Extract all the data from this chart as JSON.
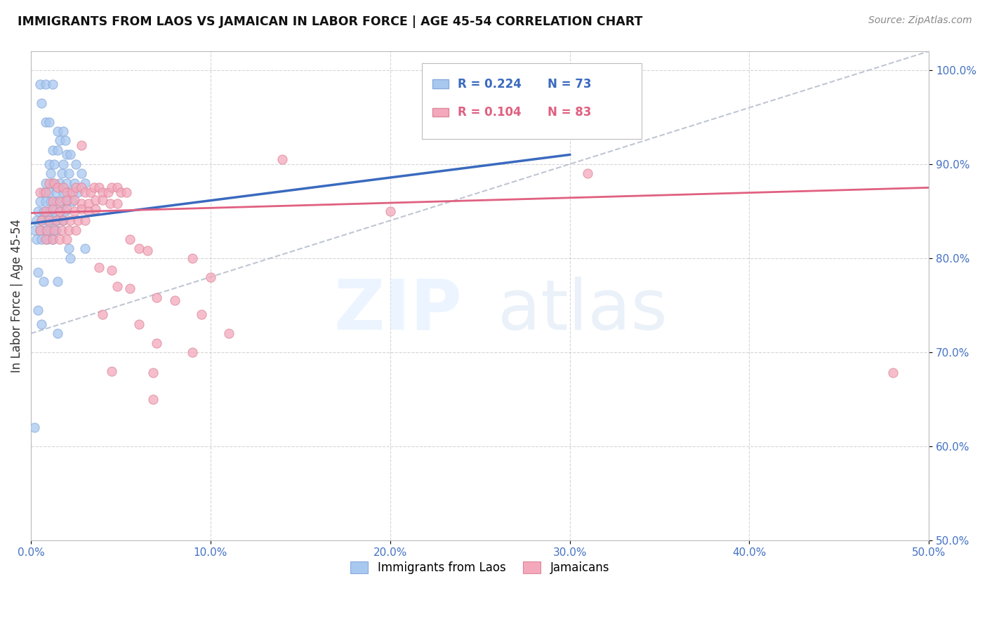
{
  "title": "IMMIGRANTS FROM LAOS VS JAMAICAN IN LABOR FORCE | AGE 45-54 CORRELATION CHART",
  "source": "Source: ZipAtlas.com",
  "xlabel": "",
  "ylabel": "In Labor Force | Age 45-54",
  "xlim": [
    0.0,
    0.5
  ],
  "ylim": [
    0.5,
    1.02
  ],
  "x_ticks": [
    0.0,
    0.1,
    0.2,
    0.3,
    0.4,
    0.5
  ],
  "x_tick_labels": [
    "0.0%",
    "10.0%",
    "20.0%",
    "30.0%",
    "40.0%",
    "50.0%"
  ],
  "y_ticks": [
    0.5,
    0.6,
    0.7,
    0.8,
    0.9,
    1.0
  ],
  "y_tick_labels": [
    "50.0%",
    "60.0%",
    "70.0%",
    "80.0%",
    "90.0%",
    "100.0%"
  ],
  "laos_color": "#a8c8f0",
  "jamaican_color": "#f4a8bc",
  "laos_R": 0.224,
  "laos_N": 73,
  "jamaican_R": 0.104,
  "jamaican_N": 83,
  "laos_line_color": "#3a6abf",
  "jamaican_line_color": "#e06080",
  "diagonal_line_color": "#b0b8c8",
  "watermark_zip": "ZIP",
  "watermark_atlas": "atlas",
  "laos_points": [
    [
      0.005,
      0.985
    ],
    [
      0.008,
      0.985
    ],
    [
      0.012,
      0.985
    ],
    [
      0.006,
      0.965
    ],
    [
      0.008,
      0.945
    ],
    [
      0.01,
      0.945
    ],
    [
      0.015,
      0.935
    ],
    [
      0.018,
      0.935
    ],
    [
      0.016,
      0.925
    ],
    [
      0.019,
      0.925
    ],
    [
      0.012,
      0.915
    ],
    [
      0.015,
      0.915
    ],
    [
      0.02,
      0.91
    ],
    [
      0.022,
      0.91
    ],
    [
      0.01,
      0.9
    ],
    [
      0.013,
      0.9
    ],
    [
      0.018,
      0.9
    ],
    [
      0.025,
      0.9
    ],
    [
      0.011,
      0.89
    ],
    [
      0.017,
      0.89
    ],
    [
      0.021,
      0.89
    ],
    [
      0.028,
      0.89
    ],
    [
      0.008,
      0.88
    ],
    [
      0.012,
      0.88
    ],
    [
      0.016,
      0.88
    ],
    [
      0.02,
      0.88
    ],
    [
      0.024,
      0.88
    ],
    [
      0.03,
      0.88
    ],
    [
      0.007,
      0.87
    ],
    [
      0.01,
      0.87
    ],
    [
      0.014,
      0.87
    ],
    [
      0.018,
      0.87
    ],
    [
      0.022,
      0.87
    ],
    [
      0.026,
      0.87
    ],
    [
      0.005,
      0.86
    ],
    [
      0.008,
      0.86
    ],
    [
      0.011,
      0.86
    ],
    [
      0.014,
      0.86
    ],
    [
      0.017,
      0.86
    ],
    [
      0.02,
      0.86
    ],
    [
      0.023,
      0.86
    ],
    [
      0.004,
      0.85
    ],
    [
      0.007,
      0.85
    ],
    [
      0.01,
      0.85
    ],
    [
      0.013,
      0.85
    ],
    [
      0.016,
      0.85
    ],
    [
      0.019,
      0.85
    ],
    [
      0.003,
      0.84
    ],
    [
      0.006,
      0.84
    ],
    [
      0.009,
      0.84
    ],
    [
      0.012,
      0.84
    ],
    [
      0.015,
      0.84
    ],
    [
      0.018,
      0.84
    ],
    [
      0.002,
      0.83
    ],
    [
      0.005,
      0.83
    ],
    [
      0.008,
      0.83
    ],
    [
      0.011,
      0.83
    ],
    [
      0.014,
      0.83
    ],
    [
      0.003,
      0.82
    ],
    [
      0.006,
      0.82
    ],
    [
      0.009,
      0.82
    ],
    [
      0.012,
      0.82
    ],
    [
      0.021,
      0.81
    ],
    [
      0.03,
      0.81
    ],
    [
      0.022,
      0.8
    ],
    [
      0.004,
      0.785
    ],
    [
      0.007,
      0.775
    ],
    [
      0.015,
      0.775
    ],
    [
      0.004,
      0.745
    ],
    [
      0.006,
      0.73
    ],
    [
      0.015,
      0.72
    ],
    [
      0.002,
      0.62
    ]
  ],
  "jamaican_points": [
    [
      0.005,
      0.87
    ],
    [
      0.008,
      0.87
    ],
    [
      0.01,
      0.88
    ],
    [
      0.013,
      0.88
    ],
    [
      0.015,
      0.875
    ],
    [
      0.018,
      0.875
    ],
    [
      0.02,
      0.87
    ],
    [
      0.023,
      0.87
    ],
    [
      0.025,
      0.875
    ],
    [
      0.028,
      0.875
    ],
    [
      0.03,
      0.87
    ],
    [
      0.033,
      0.87
    ],
    [
      0.035,
      0.875
    ],
    [
      0.038,
      0.875
    ],
    [
      0.04,
      0.87
    ],
    [
      0.043,
      0.87
    ],
    [
      0.045,
      0.875
    ],
    [
      0.048,
      0.875
    ],
    [
      0.05,
      0.87
    ],
    [
      0.053,
      0.87
    ],
    [
      0.012,
      0.86
    ],
    [
      0.016,
      0.86
    ],
    [
      0.02,
      0.862
    ],
    [
      0.024,
      0.862
    ],
    [
      0.028,
      0.858
    ],
    [
      0.032,
      0.858
    ],
    [
      0.036,
      0.862
    ],
    [
      0.04,
      0.862
    ],
    [
      0.044,
      0.858
    ],
    [
      0.048,
      0.858
    ],
    [
      0.008,
      0.85
    ],
    [
      0.012,
      0.852
    ],
    [
      0.016,
      0.85
    ],
    [
      0.02,
      0.852
    ],
    [
      0.024,
      0.85
    ],
    [
      0.028,
      0.852
    ],
    [
      0.032,
      0.85
    ],
    [
      0.036,
      0.852
    ],
    [
      0.006,
      0.84
    ],
    [
      0.01,
      0.84
    ],
    [
      0.014,
      0.84
    ],
    [
      0.018,
      0.84
    ],
    [
      0.022,
      0.84
    ],
    [
      0.026,
      0.84
    ],
    [
      0.03,
      0.84
    ],
    [
      0.005,
      0.83
    ],
    [
      0.009,
      0.83
    ],
    [
      0.013,
      0.83
    ],
    [
      0.017,
      0.83
    ],
    [
      0.021,
      0.83
    ],
    [
      0.025,
      0.83
    ],
    [
      0.008,
      0.82
    ],
    [
      0.012,
      0.82
    ],
    [
      0.016,
      0.82
    ],
    [
      0.02,
      0.82
    ],
    [
      0.055,
      0.82
    ],
    [
      0.06,
      0.81
    ],
    [
      0.065,
      0.808
    ],
    [
      0.09,
      0.8
    ],
    [
      0.038,
      0.79
    ],
    [
      0.045,
      0.787
    ],
    [
      0.1,
      0.78
    ],
    [
      0.048,
      0.77
    ],
    [
      0.055,
      0.768
    ],
    [
      0.07,
      0.758
    ],
    [
      0.08,
      0.755
    ],
    [
      0.04,
      0.74
    ],
    [
      0.095,
      0.74
    ],
    [
      0.06,
      0.73
    ],
    [
      0.11,
      0.72
    ],
    [
      0.07,
      0.71
    ],
    [
      0.09,
      0.7
    ],
    [
      0.14,
      0.905
    ],
    [
      0.2,
      0.85
    ],
    [
      0.31,
      0.89
    ],
    [
      0.48,
      0.678
    ],
    [
      0.045,
      0.68
    ],
    [
      0.068,
      0.678
    ],
    [
      0.068,
      0.65
    ],
    [
      0.028,
      0.92
    ]
  ]
}
